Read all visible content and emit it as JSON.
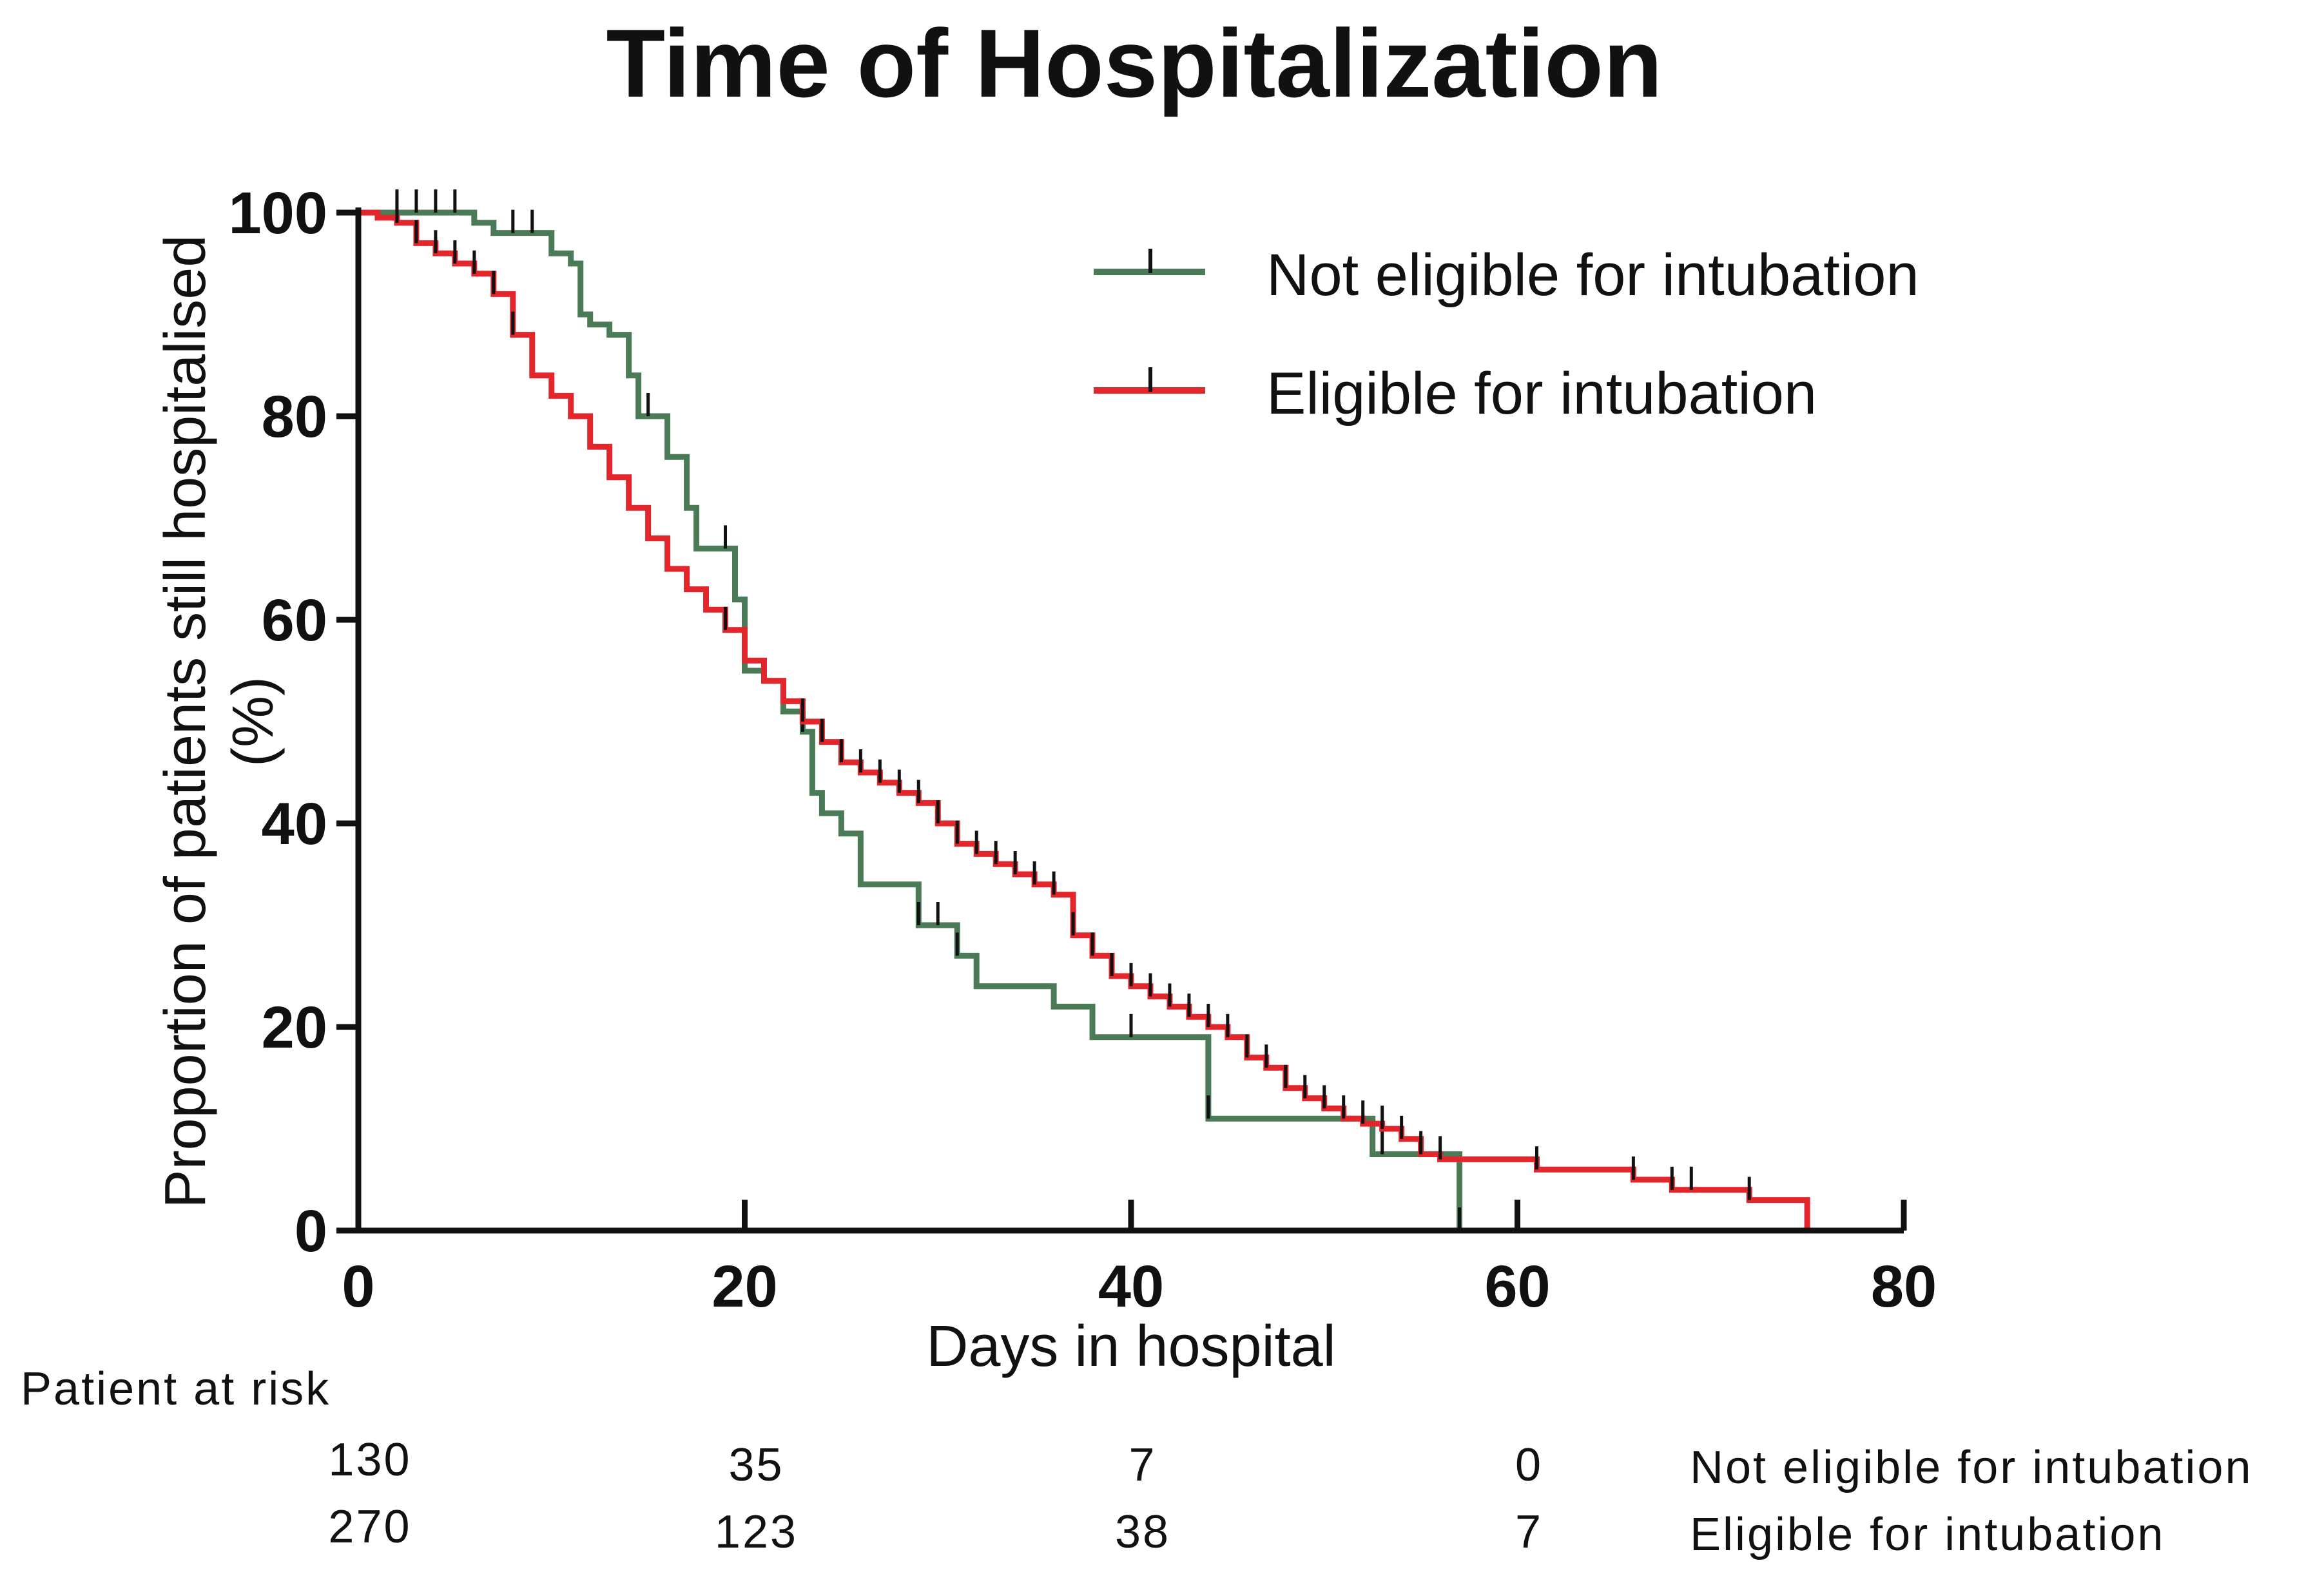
{
  "chart_data": {
    "type": "line",
    "title": "Time of Hospitalization",
    "xlabel": "Days in hospital",
    "ylabel_line1": "Proportion of patients still hospitalised",
    "ylabel_line2": "(%)",
    "xlim": [
      0,
      80
    ],
    "ylim": [
      0,
      100
    ],
    "xticks": [
      0,
      20,
      40,
      60,
      80
    ],
    "yticks": [
      0,
      20,
      40,
      60,
      80,
      100
    ],
    "xtick_labels": [
      "0",
      "20",
      "40",
      "60",
      "80"
    ],
    "ytick_labels": [
      "0",
      "20",
      "40",
      "60",
      "80",
      "100"
    ],
    "grid": false,
    "legend_position": "top-right",
    "series": [
      {
        "name": "Not eligible for intubation",
        "color": "#4a7a56",
        "steps": [
          [
            0,
            100
          ],
          [
            5,
            100
          ],
          [
            6,
            99
          ],
          [
            7,
            98
          ],
          [
            9,
            98
          ],
          [
            10,
            96
          ],
          [
            11,
            95
          ],
          [
            11.5,
            90
          ],
          [
            12,
            89
          ],
          [
            13,
            88
          ],
          [
            14,
            84
          ],
          [
            14.5,
            80
          ],
          [
            15,
            80
          ],
          [
            16,
            76
          ],
          [
            17,
            71
          ],
          [
            17.5,
            67
          ],
          [
            19,
            67
          ],
          [
            19.5,
            62
          ],
          [
            20,
            55
          ],
          [
            21,
            54
          ],
          [
            22,
            51
          ],
          [
            23,
            49
          ],
          [
            23.5,
            43
          ],
          [
            24,
            41
          ],
          [
            25,
            39
          ],
          [
            26,
            34
          ],
          [
            29,
            30
          ],
          [
            30,
            30
          ],
          [
            31,
            27
          ],
          [
            32,
            24
          ],
          [
            36,
            22
          ],
          [
            38,
            19
          ],
          [
            44,
            19
          ],
          [
            44,
            11
          ],
          [
            52,
            11
          ],
          [
            52.5,
            7.5
          ],
          [
            57,
            7.5
          ],
          [
            57,
            0
          ]
        ],
        "censor": [
          2,
          3,
          4,
          5,
          8,
          9,
          15,
          19,
          23,
          29,
          30,
          31,
          40,
          44,
          53,
          57
        ]
      },
      {
        "name": "Eligible for intubation",
        "color": "#e2262b",
        "steps": [
          [
            0,
            100
          ],
          [
            1,
            99.5
          ],
          [
            2,
            99
          ],
          [
            3,
            97
          ],
          [
            4,
            96
          ],
          [
            5,
            95
          ],
          [
            6,
            94
          ],
          [
            7,
            92
          ],
          [
            8,
            88
          ],
          [
            9,
            84
          ],
          [
            10,
            82
          ],
          [
            11,
            80
          ],
          [
            12,
            77
          ],
          [
            13,
            74
          ],
          [
            14,
            71
          ],
          [
            15,
            68
          ],
          [
            16,
            65
          ],
          [
            17,
            63
          ],
          [
            18,
            61
          ],
          [
            19,
            59
          ],
          [
            20,
            56
          ],
          [
            21,
            54
          ],
          [
            22,
            52
          ],
          [
            23,
            50
          ],
          [
            24,
            48
          ],
          [
            25,
            46
          ],
          [
            26,
            45
          ],
          [
            27,
            44
          ],
          [
            28,
            43
          ],
          [
            29,
            42
          ],
          [
            30,
            40
          ],
          [
            31,
            38
          ],
          [
            32,
            37
          ],
          [
            33,
            36
          ],
          [
            34,
            35
          ],
          [
            35,
            34
          ],
          [
            36,
            33
          ],
          [
            37,
            29
          ],
          [
            38,
            27
          ],
          [
            39,
            25
          ],
          [
            40,
            24
          ],
          [
            41,
            23
          ],
          [
            42,
            22
          ],
          [
            43,
            21
          ],
          [
            44,
            20
          ],
          [
            45,
            19
          ],
          [
            46,
            17
          ],
          [
            47,
            16
          ],
          [
            48,
            14
          ],
          [
            49,
            13
          ],
          [
            50,
            12
          ],
          [
            51,
            11
          ],
          [
            52,
            10.5
          ],
          [
            53,
            10
          ],
          [
            54,
            9
          ],
          [
            55,
            7.5
          ],
          [
            56,
            7
          ],
          [
            61,
            6
          ],
          [
            66,
            5
          ],
          [
            68,
            4
          ],
          [
            72,
            3
          ],
          [
            75,
            2.5
          ],
          [
            75,
            0
          ]
        ],
        "censor": [
          2,
          3,
          4,
          5,
          6,
          7,
          8,
          19,
          23,
          24,
          25,
          26,
          27,
          28,
          29,
          30,
          31,
          32,
          33,
          34,
          35,
          36,
          37,
          38,
          39,
          40,
          41,
          42,
          43,
          44,
          45,
          46,
          47,
          48,
          49,
          50,
          51,
          52,
          53,
          54,
          55,
          56,
          61,
          66,
          68,
          69,
          72
        ]
      }
    ],
    "risk_table": {
      "label": "Patient at risk",
      "columns_x": [
        0,
        20,
        40,
        60
      ],
      "rows": [
        {
          "name": "Not eligible for intubation",
          "values": [
            "130",
            "35",
            "7",
            "0"
          ]
        },
        {
          "name": "Eligible for intubation",
          "values": [
            "270",
            "123",
            "38",
            "7"
          ]
        }
      ]
    }
  }
}
